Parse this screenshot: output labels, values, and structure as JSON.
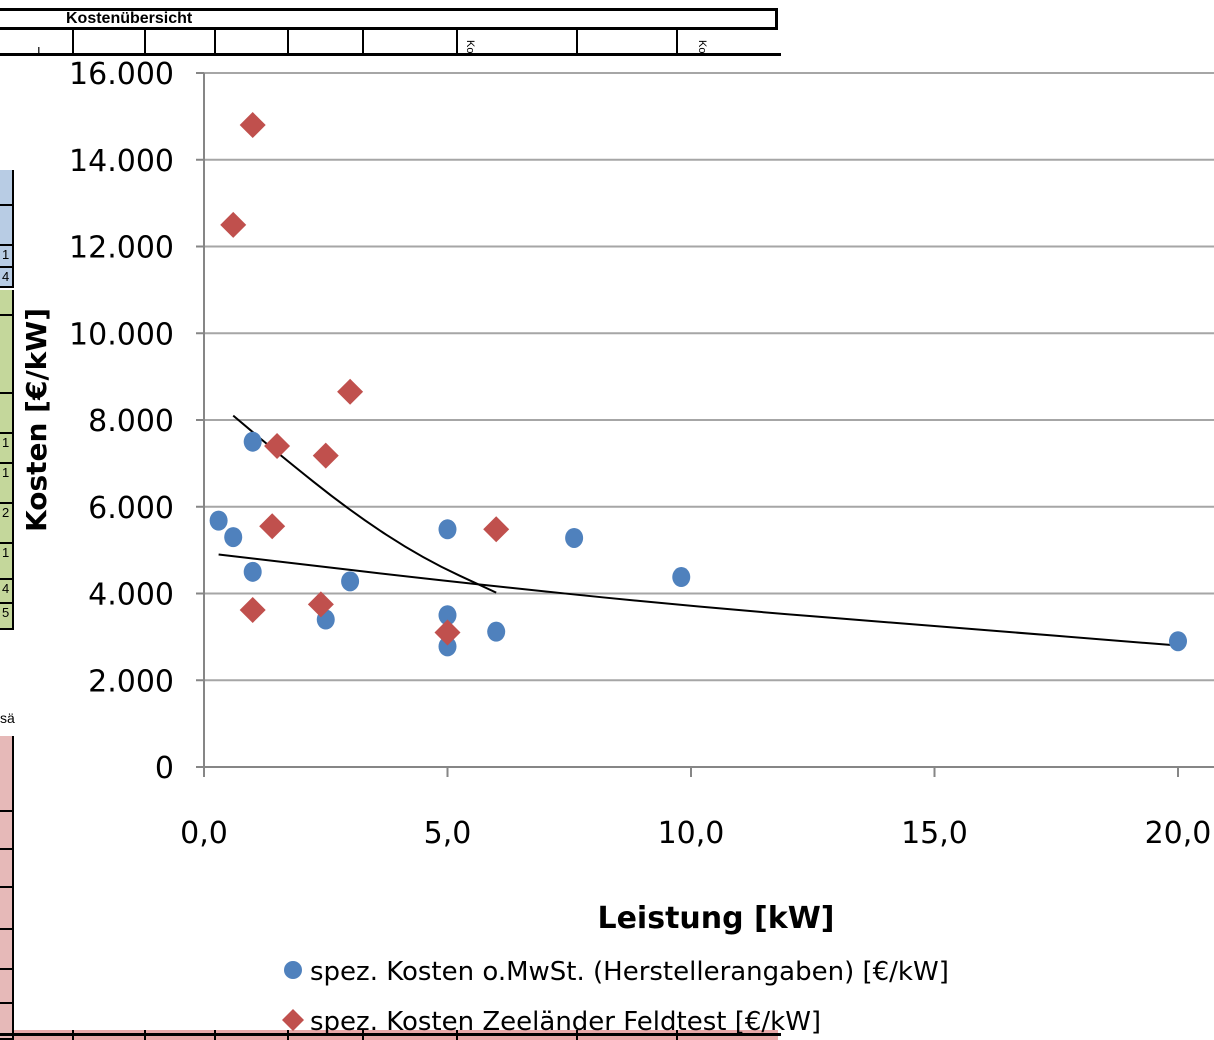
{
  "sheet": {
    "title": "Kostenübersicht",
    "rotated_headers": [
      "Ko",
      "Ko"
    ],
    "first_col_marker": "I",
    "band_blue_values": [
      "1",
      "4"
    ],
    "band_green_values": [
      "1",
      "1",
      "2",
      "1",
      "4",
      "5"
    ],
    "side_label": "sä",
    "colors": {
      "blue_band": "#b8cce4",
      "green_band": "#c4d79b",
      "red_band": "#e6b9b8"
    }
  },
  "chart_data": {
    "type": "scatter",
    "xlabel": "Leistung [kW]",
    "ylabel": "Kosten [€/kW]",
    "xlim": [
      0,
      20
    ],
    "ylim": [
      0,
      16000
    ],
    "x_ticks": [
      "0,0",
      "5,0",
      "10,0",
      "15,0",
      "20,0"
    ],
    "y_ticks": [
      "0",
      "2.000",
      "4.000",
      "6.000",
      "8.000",
      "10.000",
      "12.000",
      "14.000",
      "16.000"
    ],
    "grid": "horizontal",
    "legend_position": "bottom",
    "series": [
      {
        "name": "spez. Kosten o.MwSt. (Herstellerangaben) [€/kW]",
        "marker": "circle",
        "color": "#4f81bd",
        "points": [
          {
            "x": 0.3,
            "y": 5680
          },
          {
            "x": 0.6,
            "y": 5300
          },
          {
            "x": 1.0,
            "y": 7500
          },
          {
            "x": 1.0,
            "y": 4500
          },
          {
            "x": 2.5,
            "y": 3400
          },
          {
            "x": 3.0,
            "y": 4280
          },
          {
            "x": 5.0,
            "y": 5480
          },
          {
            "x": 5.0,
            "y": 3500
          },
          {
            "x": 5.0,
            "y": 2780
          },
          {
            "x": 6.0,
            "y": 3120
          },
          {
            "x": 7.6,
            "y": 5280
          },
          {
            "x": 9.8,
            "y": 4380
          },
          {
            "x": 20.0,
            "y": 2900
          }
        ]
      },
      {
        "name": "spez. Kosten Zeeländer Feldtest [€/kW]",
        "marker": "diamond",
        "color": "#c0504d",
        "points": [
          {
            "x": 0.6,
            "y": 12500
          },
          {
            "x": 1.0,
            "y": 14800
          },
          {
            "x": 1.0,
            "y": 3620
          },
          {
            "x": 1.4,
            "y": 5550
          },
          {
            "x": 1.5,
            "y": 7400
          },
          {
            "x": 2.4,
            "y": 3750
          },
          {
            "x": 2.5,
            "y": 7180
          },
          {
            "x": 3.0,
            "y": 8650
          },
          {
            "x": 5.0,
            "y": 3100
          },
          {
            "x": 6.0,
            "y": 5480
          }
        ]
      }
    ],
    "trendlines": [
      {
        "series": 0,
        "points": [
          {
            "x": 0.3,
            "y": 4900
          },
          {
            "x": 5.0,
            "y": 4280
          },
          {
            "x": 10.0,
            "y": 3700
          },
          {
            "x": 15.0,
            "y": 3250
          },
          {
            "x": 20.0,
            "y": 2800
          }
        ]
      },
      {
        "series": 1,
        "points": [
          {
            "x": 0.6,
            "y": 8100
          },
          {
            "x": 1.5,
            "y": 7250
          },
          {
            "x": 3.0,
            "y": 5900
          },
          {
            "x": 4.5,
            "y": 4800
          },
          {
            "x": 6.0,
            "y": 4020
          }
        ]
      }
    ]
  }
}
